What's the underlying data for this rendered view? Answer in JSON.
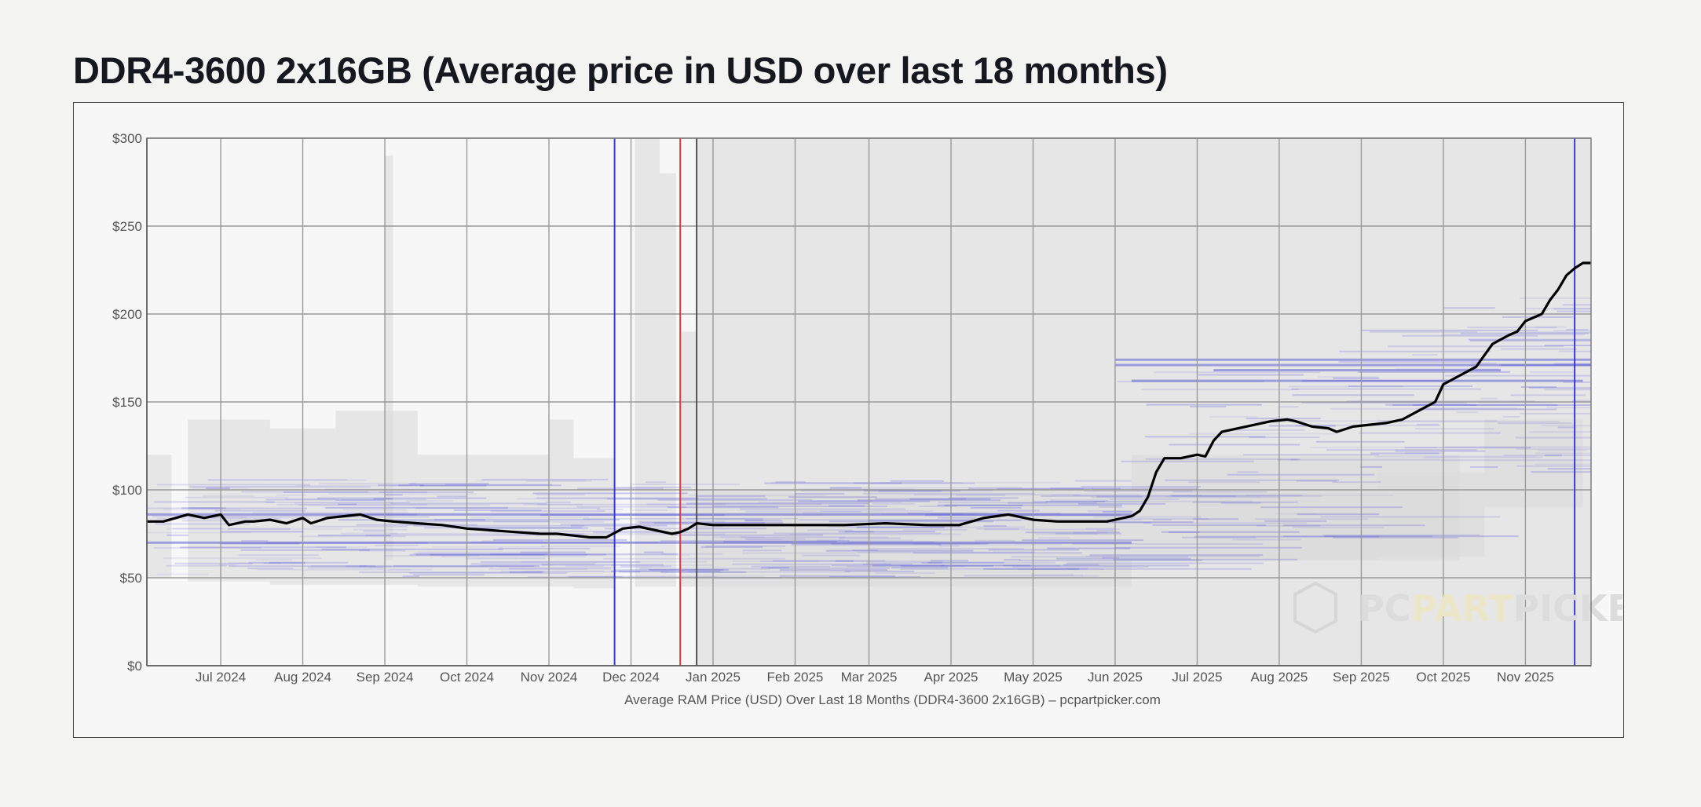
{
  "page": {
    "title": "DDR4-3600 2x16GB (Average price in USD over last 18 months)"
  },
  "chart_data": {
    "type": "line",
    "title": "DDR4-3600 2x16GB (Average price in USD over last 18 months)",
    "xlabel": "Average RAM Price (USD) Over Last 18 Months (DDR4-3600 2x16GB) – pcpartpicker.com",
    "ylabel": "",
    "x_unit": "month",
    "xlim": [
      0,
      17.6
    ],
    "ylim": [
      0,
      300
    ],
    "y_ticks": [
      0,
      50,
      100,
      150,
      200,
      250,
      300
    ],
    "y_tick_labels": [
      "$0",
      "$50",
      "$100",
      "$150",
      "$200",
      "$250",
      "$300"
    ],
    "x_tick_positions": [
      0.9,
      1.9,
      2.9,
      3.9,
      4.9,
      5.9,
      6.9,
      7.9,
      8.8,
      9.8,
      10.8,
      11.8,
      12.8,
      13.8,
      14.8,
      15.8,
      16.8
    ],
    "x_tick_labels": [
      "Jul 2024",
      "Aug 2024",
      "Sep 2024",
      "Oct 2024",
      "Nov 2024",
      "Dec 2024",
      "Jan 2025",
      "Feb 2025",
      "Mar 2025",
      "Apr 2025",
      "May 2025",
      "Jun 2025",
      "Jul 2025",
      "Aug 2025",
      "Sep 2025",
      "Oct 2025",
      "Nov 2025"
    ],
    "grid": true,
    "shaded_region": {
      "from": 6.7,
      "to": 17.6,
      "color": "#e6e6e6"
    },
    "vertical_markers": [
      {
        "x": 5.7,
        "color": "#3a3ad8"
      },
      {
        "x": 6.5,
        "color": "#e03a3a"
      },
      {
        "x": 6.7,
        "color": "#555555"
      },
      {
        "x": 17.4,
        "color": "#3a3ad8"
      }
    ],
    "series": [
      {
        "name": "Average price",
        "color": "#000000",
        "x": [
          0,
          0.2,
          0.5,
          0.7,
          0.9,
          1.0,
          1.2,
          1.3,
          1.5,
          1.7,
          1.9,
          2.0,
          2.2,
          2.4,
          2.6,
          2.8,
          3.0,
          3.3,
          3.6,
          3.9,
          4.2,
          4.5,
          4.8,
          5.0,
          5.2,
          5.4,
          5.6,
          5.8,
          6.0,
          6.2,
          6.4,
          6.5,
          6.6,
          6.7,
          6.9,
          7.2,
          7.6,
          8.0,
          8.5,
          9.0,
          9.5,
          9.9,
          10.2,
          10.5,
          10.8,
          11.1,
          11.4,
          11.7,
          11.9,
          12.0,
          12.1,
          12.2,
          12.3,
          12.4,
          12.6,
          12.8,
          12.9,
          13.0,
          13.1,
          13.3,
          13.5,
          13.7,
          13.9,
          14.0,
          14.2,
          14.4,
          14.5,
          14.7,
          14.9,
          15.1,
          15.3,
          15.5,
          15.7,
          15.8,
          16.0,
          16.2,
          16.4,
          16.6,
          16.7,
          16.8,
          17.0,
          17.1,
          17.2,
          17.3,
          17.4,
          17.5,
          17.6
        ],
        "values": [
          82,
          82,
          86,
          84,
          86,
          80,
          82,
          82,
          83,
          81,
          84,
          81,
          84,
          85,
          86,
          83,
          82,
          81,
          80,
          78,
          77,
          76,
          75,
          75,
          74,
          73,
          73,
          78,
          79,
          77,
          75,
          76,
          78,
          81,
          80,
          80,
          80,
          80,
          80,
          81,
          80,
          80,
          84,
          86,
          83,
          82,
          82,
          82,
          84,
          85,
          88,
          96,
          110,
          118,
          118,
          120,
          119,
          128,
          133,
          135,
          137,
          139,
          140,
          139,
          136,
          135,
          133,
          136,
          137,
          138,
          140,
          145,
          150,
          160,
          165,
          170,
          183,
          188,
          190,
          196,
          200,
          208,
          214,
          222,
          226,
          229,
          229
        ]
      }
    ],
    "watermark": "PCPARTPICKER"
  }
}
